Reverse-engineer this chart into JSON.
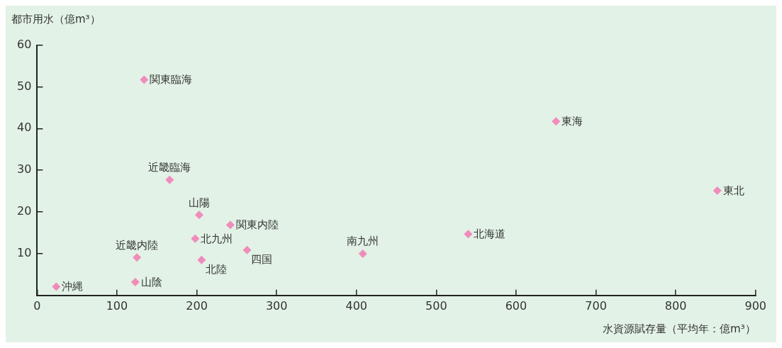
{
  "chart_data": {
    "type": "scatter",
    "xlabel": "水資源賦存量（平均年：億m³）",
    "ylabel": "都市用水（億m³）",
    "xlim": [
      0,
      900
    ],
    "xticks": [
      0,
      100,
      200,
      300,
      400,
      500,
      600,
      700,
      800,
      900
    ],
    "ylim": [
      0,
      60
    ],
    "yticks": [
      {
        "value": 0,
        "label": null
      },
      10,
      20,
      30,
      40,
      50,
      60
    ],
    "grid": false,
    "legend": false,
    "marker": "diamond",
    "series": [
      {
        "name": "関東臨海",
        "color": "#f08cbb",
        "x": [
          134
        ],
        "values": [
          51.7
        ]
      },
      {
        "name": "東海",
        "color": "#f08cbb",
        "x": [
          650
        ],
        "values": [
          41.7
        ]
      },
      {
        "name": "近畿臨海",
        "color": "#f08cbb",
        "x": [
          166
        ],
        "values": [
          27.7
        ]
      },
      {
        "name": "東北",
        "color": "#f08cbb",
        "x": [
          852
        ],
        "values": [
          25.1
        ]
      },
      {
        "name": "山陽",
        "color": "#f08cbb",
        "x": [
          203
        ],
        "values": [
          19.3
        ]
      },
      {
        "name": "関東内陸",
        "color": "#f08cbb",
        "x": [
          242
        ],
        "values": [
          16.9
        ]
      },
      {
        "name": "北海道",
        "color": "#f08cbb",
        "x": [
          540
        ],
        "values": [
          14.7
        ]
      },
      {
        "name": "北九州",
        "color": "#f08cbb",
        "x": [
          198
        ],
        "values": [
          13.6
        ]
      },
      {
        "name": "四国",
        "color": "#f08cbb",
        "x": [
          263
        ],
        "values": [
          10.9
        ]
      },
      {
        "name": "南九州",
        "color": "#f08cbb",
        "x": [
          408
        ],
        "values": [
          10.0
        ]
      },
      {
        "name": "近畿内陸",
        "color": "#f08cbb",
        "x": [
          125
        ],
        "values": [
          9.1
        ]
      },
      {
        "name": "北陸",
        "color": "#f08cbb",
        "x": [
          206
        ],
        "values": [
          8.5
        ]
      },
      {
        "name": "山陰",
        "color": "#f08cbb",
        "x": [
          123
        ],
        "values": [
          3.2
        ]
      },
      {
        "name": "沖縄",
        "color": "#f08cbb",
        "x": [
          24
        ],
        "values": [
          2.1
        ]
      }
    ]
  }
}
